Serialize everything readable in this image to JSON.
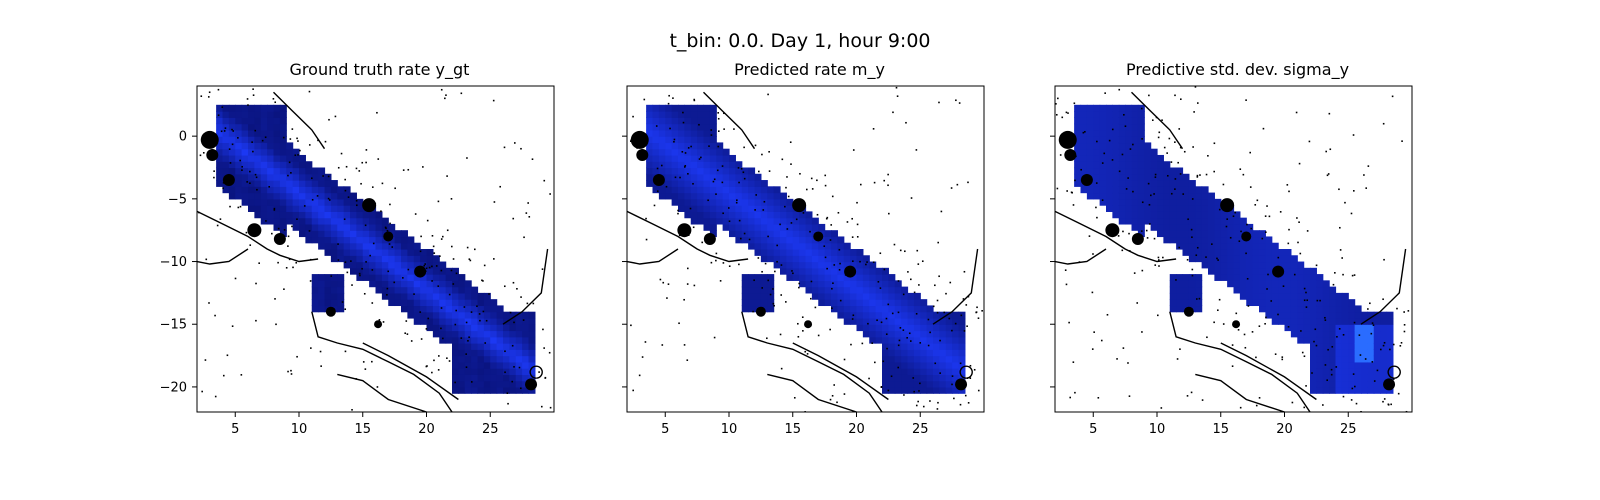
{
  "suptitle": "t_bin: 0.0. Day 1, hour 9:00",
  "colors": {
    "background": "#ffffff",
    "map": "#000000",
    "rate_dark": "#0a1480",
    "rate_mid": "#1a2ad0",
    "rate_bright": "#1e3cff",
    "sigma_high": "#2a6cff"
  },
  "chart_data": [
    {
      "type": "heatmap",
      "title": "Ground truth rate y_gt",
      "xlim": [
        2,
        30
      ],
      "ylim": [
        -22,
        4
      ],
      "xticks": [
        5,
        10,
        15,
        20,
        25
      ],
      "yticks": [
        0,
        -5,
        -10,
        -15,
        -20
      ],
      "show_yticklabels": true,
      "grid": false,
      "colormap": "dark-blue to bright-blue",
      "style": "blocky"
    },
    {
      "type": "heatmap",
      "title": "Predicted rate m_y",
      "xlim": [
        2,
        30
      ],
      "ylim": [
        -22,
        4
      ],
      "xticks": [
        5,
        10,
        15,
        20,
        25
      ],
      "yticks": [
        0,
        -5,
        -10,
        -15,
        -20
      ],
      "show_yticklabels": false,
      "grid": false,
      "colormap": "dark-blue to bright-blue",
      "style": "smooth"
    },
    {
      "type": "heatmap",
      "title": "Predictive std. dev. sigma_y",
      "xlim": [
        2,
        30
      ],
      "ylim": [
        -22,
        4
      ],
      "xticks": [
        5,
        10,
        15,
        20,
        25
      ],
      "yticks": [
        0,
        -5,
        -10,
        -15,
        -20
      ],
      "show_yticklabels": false,
      "grid": false,
      "colormap": "dark-blue to bright-blue",
      "style": "sigma"
    }
  ]
}
